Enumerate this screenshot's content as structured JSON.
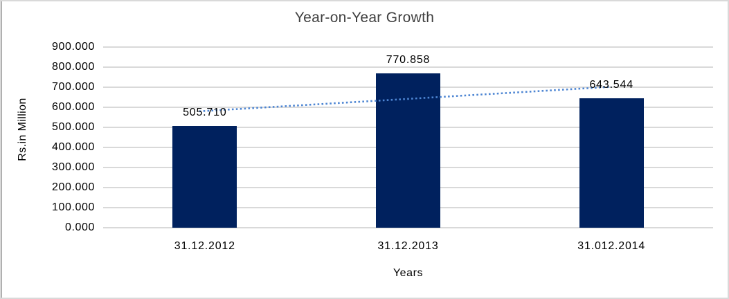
{
  "chart_data": {
    "type": "bar",
    "title": "Year-on-Year Growth",
    "xlabel": "Years",
    "ylabel": "Rs.in Million",
    "categories": [
      "31.12.2012",
      "31.12.2013",
      "31.012.2014"
    ],
    "values": [
      505.71,
      770.858,
      643.544
    ],
    "value_labels": [
      "505.710",
      "770.858",
      "643.544"
    ],
    "ylim": [
      0,
      900
    ],
    "yticks": [
      {
        "label": "900.000",
        "value": 900
      },
      {
        "label": "800.000",
        "value": 800
      },
      {
        "label": "700.000",
        "value": 700
      },
      {
        "label": "600.000",
        "value": 600
      },
      {
        "label": "500.000",
        "value": 500
      },
      {
        "label": "400.000",
        "value": 400
      },
      {
        "label": "300.000",
        "value": 300
      },
      {
        "label": "200.000",
        "value": 200
      },
      {
        "label": "100.000",
        "value": 100
      },
      {
        "label": "0.000",
        "value": 0
      }
    ],
    "grid": true,
    "legend": false,
    "bar_color": "#00215E",
    "gridline_color": "#D9D9D9",
    "trendline": {
      "type": "linear",
      "style": "dotted",
      "color": "#4E86D3",
      "start_value": 580,
      "end_value": 702
    }
  }
}
